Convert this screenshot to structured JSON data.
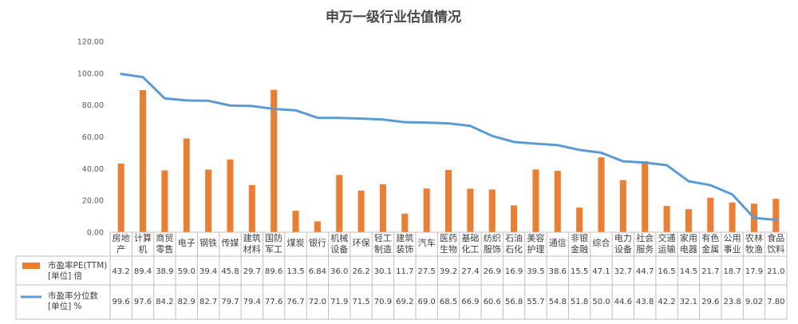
{
  "chart_data": {
    "type": "bar",
    "title": "申万一级行业估值情况",
    "ylim": [
      0,
      120
    ],
    "yticks": [
      "0.00",
      "20.00",
      "40.00",
      "60.00",
      "80.00",
      "100.00",
      "120.00"
    ],
    "grid": false,
    "legend": "bottom-left (data table)",
    "categories": [
      [
        "房地",
        "产"
      ],
      [
        "计算",
        "机"
      ],
      [
        "商贸",
        "零售"
      ],
      [
        "电子"
      ],
      [
        "钢铁"
      ],
      [
        "传媒"
      ],
      [
        "建筑",
        "材料"
      ],
      [
        "国防",
        "军工"
      ],
      [
        "煤炭"
      ],
      [
        "银行"
      ],
      [
        "机械",
        "设备"
      ],
      [
        "环保"
      ],
      [
        "轻工",
        "制造"
      ],
      [
        "建筑",
        "装饰"
      ],
      [
        "汽车"
      ],
      [
        "医药",
        "生物"
      ],
      [
        "基础",
        "化工"
      ],
      [
        "纺织",
        "服饰"
      ],
      [
        "石油",
        "石化"
      ],
      [
        "美容",
        "护理"
      ],
      [
        "通信"
      ],
      [
        "非银",
        "金融"
      ],
      [
        "综合"
      ],
      [
        "电力",
        "设备"
      ],
      [
        "社会",
        "服务"
      ],
      [
        "交通",
        "运输"
      ],
      [
        "家用",
        "电器"
      ],
      [
        "有色",
        "金属"
      ],
      [
        "公用",
        "事业"
      ],
      [
        "农林",
        "牧渔"
      ],
      [
        "食品",
        "饮料"
      ]
    ],
    "series": [
      {
        "name": [
          "市盈率PE(TTM)",
          "[单位] 倍"
        ],
        "kind": "bar",
        "color": "#ed7d31",
        "values": [
          43.2,
          89.4,
          38.9,
          59.0,
          39.4,
          45.8,
          29.7,
          89.6,
          13.5,
          6.84,
          36.0,
          26.2,
          30.1,
          11.7,
          27.5,
          39.2,
          27.4,
          26.9,
          16.9,
          39.5,
          38.6,
          15.5,
          47.1,
          32.7,
          44.7,
          16.5,
          14.5,
          21.7,
          18.7,
          17.9,
          21.0
        ],
        "labels": [
          "43.2",
          "89.4",
          "38.9",
          "59.0",
          "39.4",
          "45.8",
          "29.7",
          "89.6",
          "13.5",
          "6.84",
          "36.0",
          "26.2",
          "30.1",
          "11.7",
          "27.5",
          "39.2",
          "27.4",
          "26.9",
          "16.9",
          "39.5",
          "38.6",
          "15.5",
          "47.1",
          "32.7",
          "44.7",
          "16.5",
          "14.5",
          "21.7",
          "18.7",
          "17.9",
          "21.0"
        ]
      },
      {
        "name": [
          "市盈率分位数",
          "[单位] %"
        ],
        "kind": "line",
        "color": "#5b9bd5",
        "values": [
          99.6,
          97.6,
          84.2,
          82.9,
          82.7,
          79.7,
          79.4,
          77.6,
          76.7,
          72.0,
          71.9,
          71.5,
          70.9,
          69.2,
          69.0,
          68.5,
          66.9,
          60.6,
          56.8,
          55.7,
          54.8,
          51.8,
          50.0,
          44.6,
          43.8,
          42.2,
          32.1,
          29.6,
          23.8,
          9.02,
          7.8
        ],
        "labels": [
          "99.6",
          "97.6",
          "84.2",
          "82.9",
          "82.7",
          "79.7",
          "79.4",
          "77.6",
          "76.7",
          "72.0",
          "71.9",
          "71.5",
          "70.9",
          "69.2",
          "69.0",
          "68.5",
          "66.9",
          "60.6",
          "56.8",
          "55.7",
          "54.8",
          "51.8",
          "50.0",
          "44.6",
          "43.8",
          "42.2",
          "32.1",
          "29.6",
          "23.8",
          "9.02",
          "7.80"
        ]
      }
    ]
  }
}
